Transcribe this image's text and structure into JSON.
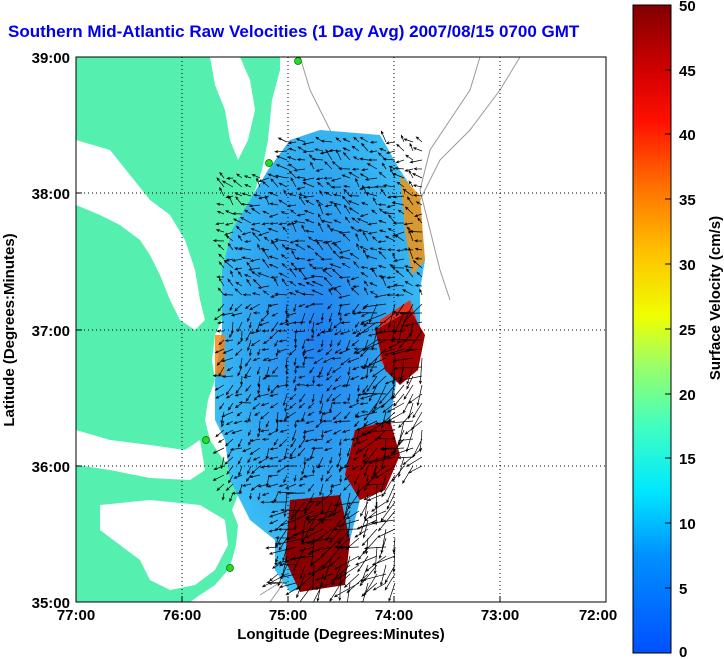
{
  "title": "Southern Mid-Atlantic Raw Velocities (1 Day Avg) 2007/08/15 0700 GMT",
  "x_axis": {
    "label": "Longitude (Degrees:Minutes)",
    "ticks": [
      "77:00",
      "76:00",
      "75:00",
      "74:00",
      "73:00",
      "72:00"
    ]
  },
  "y_axis": {
    "label": "Latitude (Degrees:Minutes)",
    "ticks": [
      "39:00",
      "38:00",
      "37:00",
      "36:00",
      "35:00"
    ]
  },
  "colorbar": {
    "label": "Surface Velocity (cm/s)",
    "ticks": [
      "50",
      "45",
      "40",
      "35",
      "30",
      "25",
      "20",
      "15",
      "10",
      "5",
      "0"
    ],
    "range": [
      0,
      50
    ]
  },
  "colors": {
    "land": "#55f0b0",
    "water": "#ffffff",
    "title": "#0000ee",
    "station": "#22dd22"
  },
  "grid": "dotted"
}
